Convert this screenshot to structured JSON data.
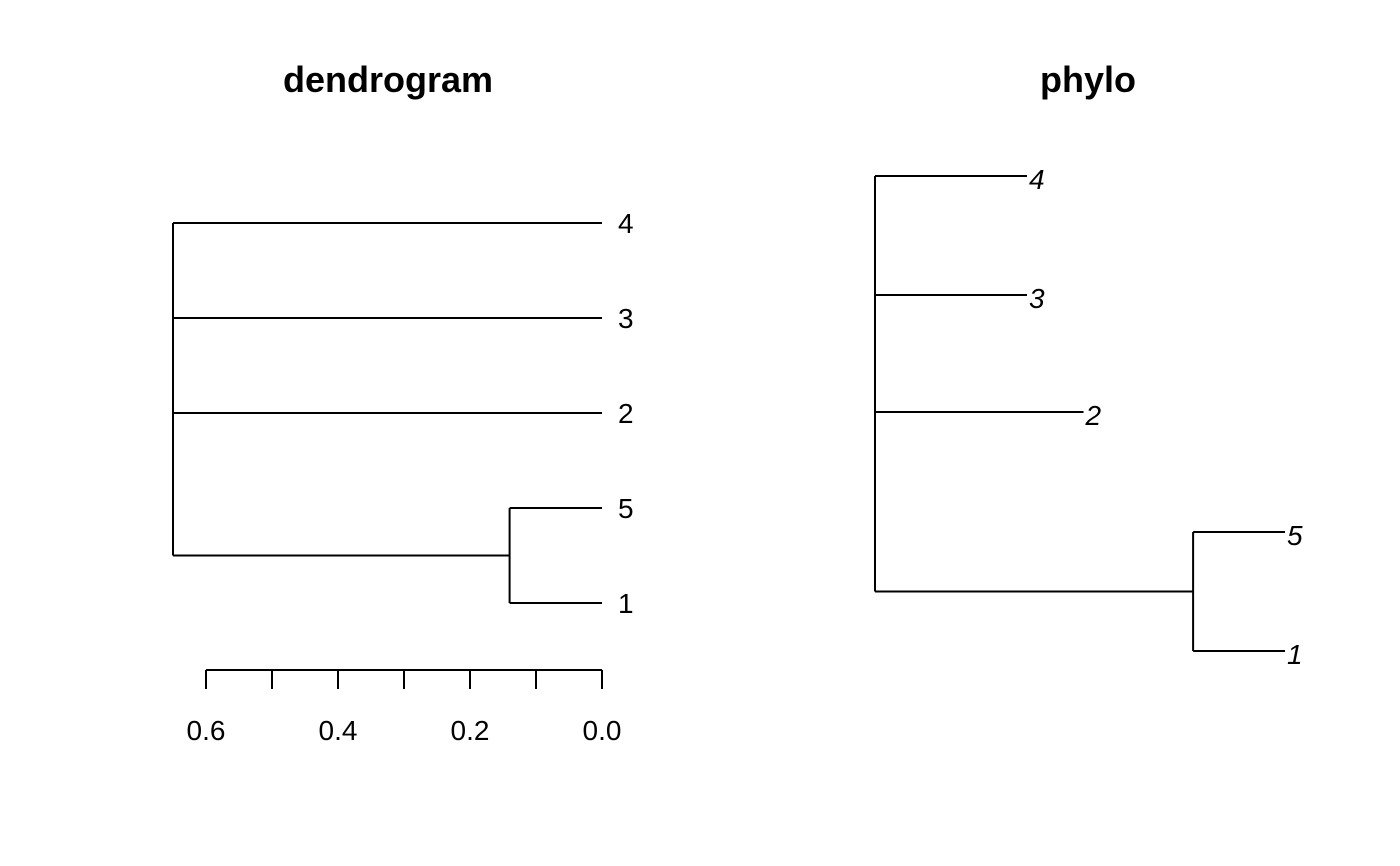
{
  "chart_data": [
    {
      "type": "dendrogram",
      "title": "dendrogram",
      "orientation": "horizontal",
      "axis": {
        "ticks": [
          0.6,
          0.4,
          0.2,
          0.0
        ],
        "tick_labels": [
          "0.6",
          "0.4",
          "0.2",
          "0.0"
        ],
        "minor_step": 0.1,
        "range": [
          0.6,
          0.0
        ],
        "reversed": true
      },
      "leaves": [
        {
          "label": "4",
          "branch_start": 0.65,
          "branch_end": 0.0
        },
        {
          "label": "3",
          "branch_start": 0.65,
          "branch_end": 0.0
        },
        {
          "label": "2",
          "branch_start": 0.65,
          "branch_end": 0.0
        },
        {
          "label": "5",
          "branch_start": 0.14,
          "branch_end": 0.0
        },
        {
          "label": "1",
          "branch_start": 0.14,
          "branch_end": 0.0
        }
      ],
      "merges": [
        {
          "members": [
            "5",
            "1"
          ],
          "height": 0.14
        },
        {
          "members": [
            "4",
            "3",
            "2",
            "5,1"
          ],
          "height": 0.65
        }
      ]
    },
    {
      "type": "phylogram",
      "title": "phylo",
      "orientation": "rightwards",
      "tip_label_style": "italic",
      "tips": [
        {
          "label": "4",
          "depth": 0.43
        },
        {
          "label": "3",
          "depth": 0.43
        },
        {
          "label": "2",
          "depth": 0.59
        },
        {
          "label": "5",
          "depth": 1.16
        },
        {
          "label": "1",
          "depth": 1.16
        }
      ],
      "internal_nodes": [
        {
          "children": [
            "5",
            "1"
          ],
          "depth": 0.9
        },
        {
          "children": [
            "4",
            "3",
            "2",
            "5,1"
          ],
          "depth": 0.0
        }
      ]
    }
  ]
}
